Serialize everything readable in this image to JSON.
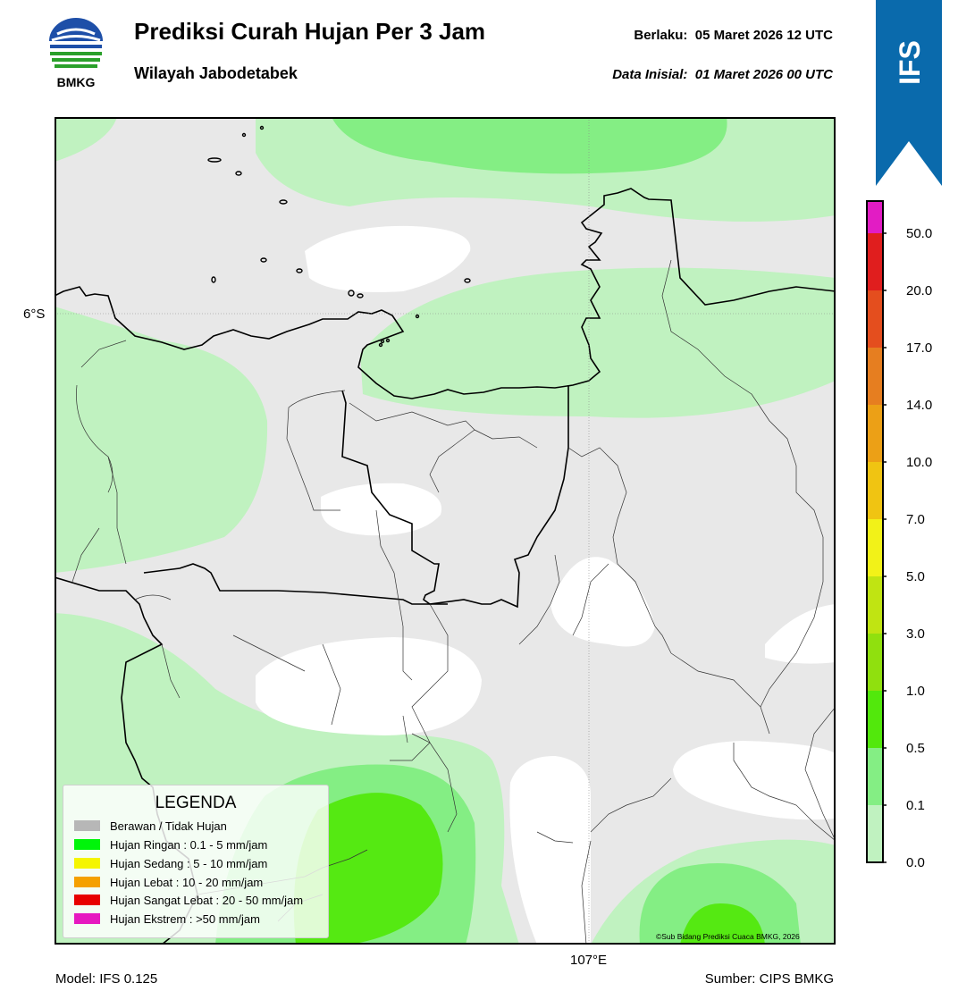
{
  "header": {
    "logo_text": "BMKG",
    "title": "Prediksi Curah Hujan Per 3 Jam",
    "subtitle": "Wilayah Jabodetabek",
    "valid_label": "Berlaku:",
    "valid_value": "05 Maret 2026 12 UTC",
    "init_label": "Data Inisial:",
    "init_value": "01 Maret 2026 00 UTC"
  },
  "model_badge": {
    "text": "IFS",
    "color": "#0a6aac"
  },
  "map": {
    "lat_tick": "6°S",
    "lon_tick": "107°E",
    "copyright": "©Sub Bidang Prediksi Cuaca BMKG, 2026"
  },
  "legend": {
    "title": "LEGENDA",
    "items": [
      {
        "label": "Berawan / Tidak Hujan",
        "color": "#b7b7b7"
      },
      {
        "label": "Hujan Ringan : 0.1 - 5 mm/jam",
        "color": "#00f50a"
      },
      {
        "label": "Hujan Sedang : 5 - 10 mm/jam",
        "color": "#f5f500"
      },
      {
        "label": "Hujan Lebat : 10 - 20 mm/jam",
        "color": "#f5a000"
      },
      {
        "label": "Hujan Sangat Lebat : 20 - 50 mm/jam",
        "color": "#e80000"
      },
      {
        "label": "Hujan Ekstrem : >50 mm/jam",
        "color": "#e619c0"
      }
    ]
  },
  "colorbar": {
    "labels": [
      "50.0",
      "20.0",
      "17.0",
      "14.0",
      "10.0",
      "7.0",
      "5.0",
      "3.0",
      "1.0",
      "0.5",
      "0.1",
      "0.0"
    ],
    "colors_bottom_to_top": [
      "#eeeeee",
      "#c0f2c0",
      "#84ee84",
      "#52e80c",
      "#90e00e",
      "#c0e412",
      "#f2f218",
      "#f0c412",
      "#eca016",
      "#e67e20",
      "#e44e1e",
      "#e01e1e",
      "#e21cc4"
    ]
  },
  "footer": {
    "model": "Model: IFS 0.125",
    "source": "Sumber: CIPS BMKG"
  }
}
